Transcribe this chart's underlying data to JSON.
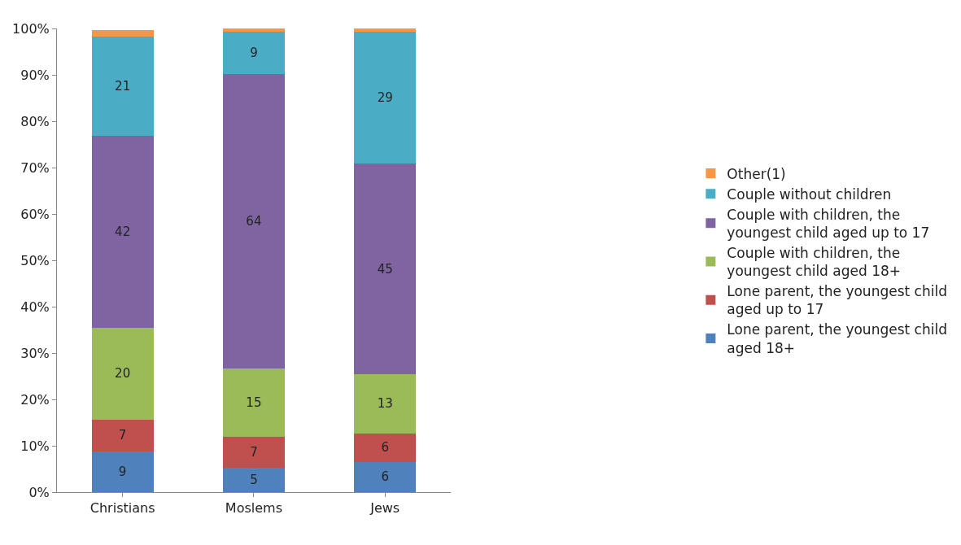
{
  "chart_data": {
    "type": "bar",
    "stacked": true,
    "categories": [
      "Christians",
      "Moslems",
      "Jews"
    ],
    "ylim": [
      0,
      100
    ],
    "yticks": [
      {
        "value": 0,
        "label": "0%"
      },
      {
        "value": 10,
        "label": "10%"
      },
      {
        "value": 20,
        "label": "20%"
      },
      {
        "value": 30,
        "label": "30%"
      },
      {
        "value": 40,
        "label": "40%"
      },
      {
        "value": 50,
        "label": "50%"
      },
      {
        "value": 60,
        "label": "60%"
      },
      {
        "value": 70,
        "label": "70%"
      },
      {
        "value": 80,
        "label": "80%"
      },
      {
        "value": 90,
        "label": "90%"
      },
      {
        "value": 100,
        "label": "100%"
      }
    ],
    "grid": false,
    "legend": "right",
    "series": [
      {
        "name": "Lone parent, the youngest child aged 18+",
        "color": "#4f81bd",
        "values": [
          8.8,
          5.3,
          6.5
        ],
        "value_labels": [
          "9",
          "5",
          "6"
        ]
      },
      {
        "name": "Lone parent, the youngest child aged up to 17",
        "color": "#c0504d",
        "values": [
          6.9,
          6.6,
          6.2
        ],
        "value_labels": [
          "7",
          "7",
          "6"
        ]
      },
      {
        "name": "Couple with children, the youngest child aged 18+",
        "color": "#9bbb59",
        "values": [
          19.7,
          14.7,
          12.8
        ],
        "value_labels": [
          "20",
          "15",
          "13"
        ]
      },
      {
        "name": "Couple with children, the youngest child aged up to 17",
        "color": "#8064a2",
        "values": [
          41.5,
          63.6,
          45.3
        ],
        "value_labels": [
          "42",
          "64",
          "45"
        ]
      },
      {
        "name": "Couple without children",
        "color": "#4bacc6",
        "values": [
          21.4,
          9.1,
          28.5
        ],
        "value_labels": [
          "21",
          "9",
          "29"
        ]
      },
      {
        "name": "Other(1)",
        "color": "#f79646",
        "values": [
          1.3,
          0.7,
          0.7
        ],
        "value_labels": [
          null,
          null,
          null
        ]
      }
    ]
  }
}
